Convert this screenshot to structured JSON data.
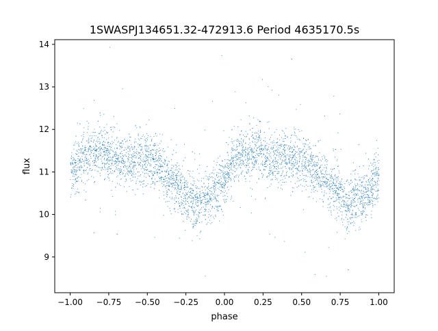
{
  "chart_data": {
    "type": "scatter",
    "title": "1SWASPJ134651.32-472913.6 Period 4635170.5s",
    "xlabel": "phase",
    "ylabel": "flux",
    "xlim": [
      -1.1,
      1.1
    ],
    "ylim": [
      8.16,
      14.11
    ],
    "xticks": [
      -1.0,
      -0.75,
      -0.5,
      -0.25,
      0.0,
      0.25,
      0.5,
      0.75,
      1.0
    ],
    "xtick_labels": [
      "−1.00",
      "−0.75",
      "−0.50",
      "−0.25",
      "0.00",
      "0.25",
      "0.50",
      "0.75",
      "1.00"
    ],
    "yticks": [
      9,
      10,
      11,
      12,
      13,
      14
    ],
    "ytick_labels": [
      "9",
      "10",
      "11",
      "12",
      "13",
      "14"
    ],
    "grid": false,
    "marker_color": "#1f77b4",
    "binned_mean_flux": {
      "phase": [
        -1.0,
        -0.95,
        -0.9,
        -0.85,
        -0.8,
        -0.75,
        -0.7,
        -0.65,
        -0.6,
        -0.55,
        -0.5,
        -0.45,
        -0.4,
        -0.35,
        -0.3,
        -0.25,
        -0.2,
        -0.15,
        -0.1,
        -0.05,
        0.0,
        0.05,
        0.1,
        0.15,
        0.2,
        0.25,
        0.3,
        0.35,
        0.4,
        0.45,
        0.5,
        0.55,
        0.6,
        0.65,
        0.7,
        0.75,
        0.8,
        0.85,
        0.9,
        0.95,
        1.0
      ],
      "flux": [
        11.0,
        11.2,
        11.4,
        11.4,
        11.5,
        11.4,
        11.3,
        11.3,
        11.3,
        11.35,
        11.3,
        11.2,
        11.0,
        10.8,
        10.65,
        10.45,
        10.3,
        10.3,
        10.4,
        10.6,
        10.9,
        11.2,
        11.4,
        11.4,
        11.5,
        11.4,
        11.3,
        11.3,
        11.3,
        11.35,
        11.3,
        11.2,
        11.0,
        10.8,
        10.65,
        10.45,
        10.3,
        10.3,
        10.4,
        10.6,
        10.9
      ],
      "scatter_sd": 0.3
    }
  }
}
